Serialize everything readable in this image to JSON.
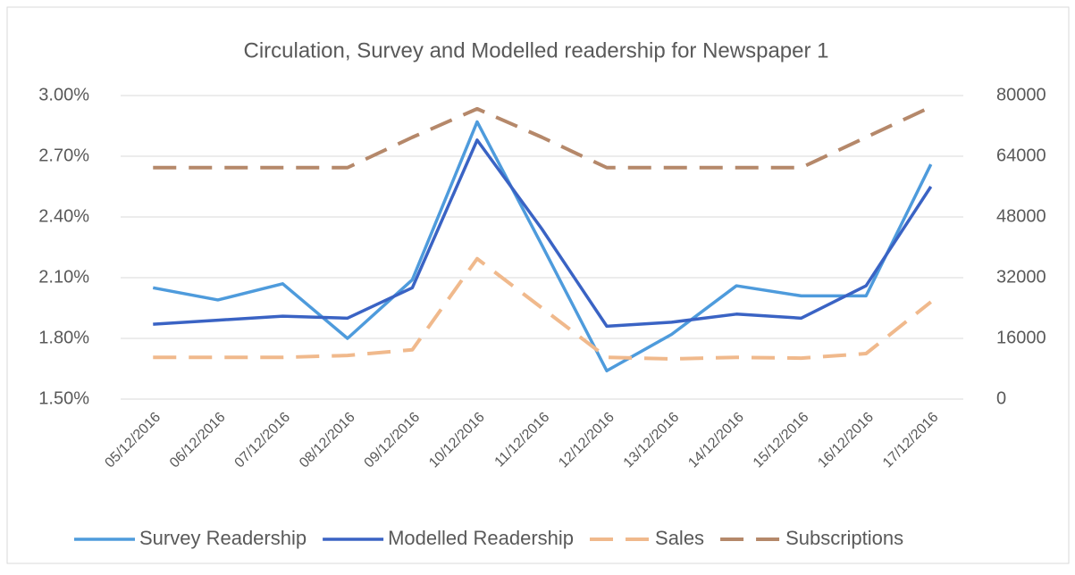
{
  "chart_data": {
    "type": "line",
    "title": "Circulation, Survey and Modelled readership for Newspaper 1",
    "x": [
      "05/12/2016",
      "06/12/2016",
      "07/12/2016",
      "08/12/2016",
      "09/12/2016",
      "10/12/2016",
      "11/12/2016",
      "12/12/2016",
      "13/12/2016",
      "14/12/2016",
      "15/12/2016",
      "16/12/2016",
      "17/12/2016"
    ],
    "series": [
      {
        "name": "Survey Readership",
        "color": "#4e9bdc",
        "dashed": false,
        "axis": "y",
        "values": [
          2.05,
          1.99,
          2.07,
          1.8,
          2.09,
          2.87,
          2.26,
          1.64,
          1.82,
          2.06,
          2.01,
          2.01,
          2.66
        ]
      },
      {
        "name": "Modelled Readership",
        "color": "#3a63c4",
        "dashed": false,
        "axis": "y",
        "values": [
          1.87,
          1.89,
          1.91,
          1.9,
          2.05,
          2.78,
          2.34,
          1.86,
          1.88,
          1.92,
          1.9,
          2.06,
          2.55
        ]
      },
      {
        "name": "Sales",
        "color": "#f0b98c",
        "dashed": true,
        "axis": "y2",
        "values": [
          11000,
          11000,
          11000,
          11500,
          13000,
          37000,
          24000,
          11000,
          10600,
          11000,
          10800,
          12000,
          25600
        ]
      },
      {
        "name": "Subscriptions",
        "color": "#b5886a",
        "dashed": true,
        "axis": "y2",
        "values": [
          61000,
          61000,
          61000,
          61000,
          69000,
          76500,
          69000,
          61000,
          61000,
          61000,
          61000,
          69000,
          77000
        ]
      }
    ],
    "ylim": [
      1.5,
      3.0
    ],
    "yticks": [
      {
        "value": 1.5,
        "label": "1.50%"
      },
      {
        "value": 1.8,
        "label": "1.80%"
      },
      {
        "value": 2.1,
        "label": "2.10%"
      },
      {
        "value": 2.4,
        "label": "2.40%"
      },
      {
        "value": 2.7,
        "label": "2.70%"
      },
      {
        "value": 3.0,
        "label": "3.00%"
      }
    ],
    "y2lim": [
      0,
      80000
    ],
    "y2ticks": [
      0,
      16000,
      32000,
      48000,
      64000,
      80000
    ],
    "grid": true,
    "legend": "bottom"
  }
}
